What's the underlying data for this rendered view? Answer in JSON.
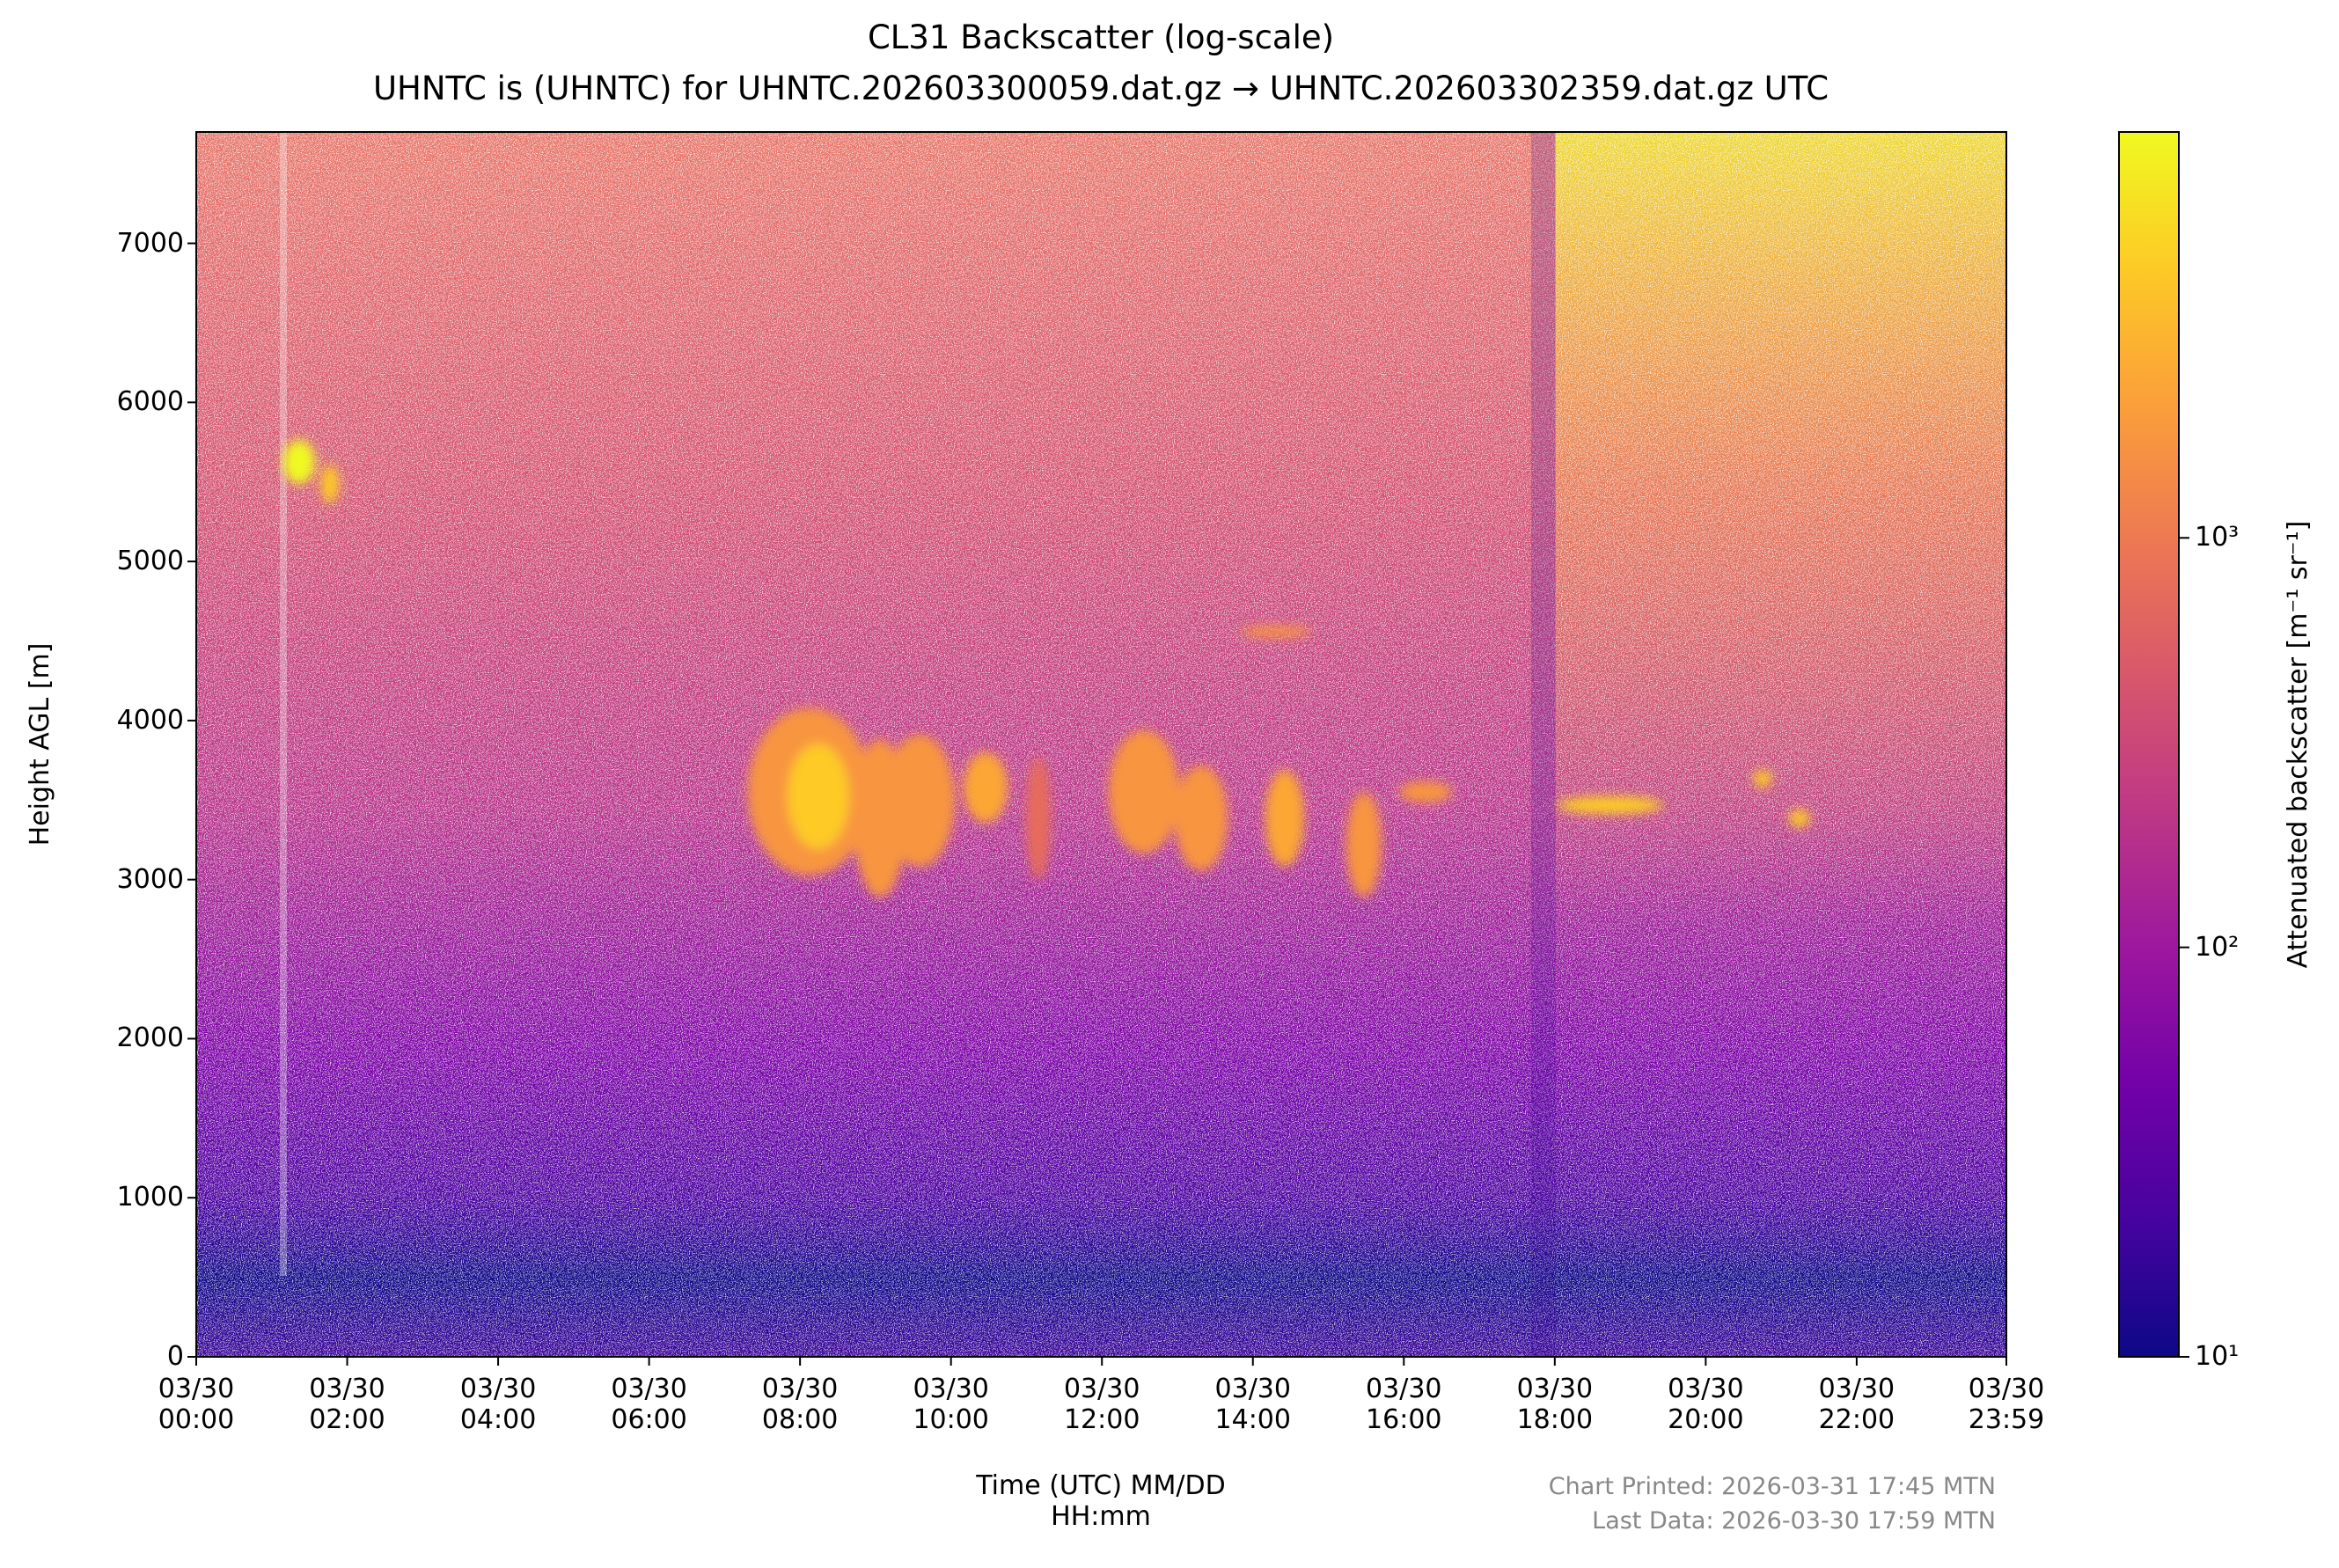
{
  "chart_data": {
    "type": "heatmap",
    "title": "CL31 Backscatter (log-scale)",
    "subtitle": "UHNTC is (UHNTC) for UHNTC.202603300059.dat.gz → UHNTC.202603302359.dat.gz UTC",
    "xlabel": "Time (UTC) MM/DD\nHH:mm",
    "ylabel": "Height AGL [m]",
    "xlim": [
      0,
      1439
    ],
    "xticks": [
      {
        "value": 0,
        "label": "03/30\n00:00"
      },
      {
        "value": 120,
        "label": "03/30\n02:00"
      },
      {
        "value": 240,
        "label": "03/30\n04:00"
      },
      {
        "value": 360,
        "label": "03/30\n06:00"
      },
      {
        "value": 480,
        "label": "03/30\n08:00"
      },
      {
        "value": 600,
        "label": "03/30\n10:00"
      },
      {
        "value": 720,
        "label": "03/30\n12:00"
      },
      {
        "value": 840,
        "label": "03/30\n14:00"
      },
      {
        "value": 960,
        "label": "03/30\n16:00"
      },
      {
        "value": 1080,
        "label": "03/30\n18:00"
      },
      {
        "value": 1200,
        "label": "03/30\n20:00"
      },
      {
        "value": 1320,
        "label": "03/30\n22:00"
      },
      {
        "value": 1439,
        "label": "03/30\n23:59"
      }
    ],
    "ylim": [
      0,
      7700
    ],
    "yticks": [
      0,
      1000,
      2000,
      3000,
      4000,
      5000,
      6000,
      7000
    ],
    "colorbar": {
      "label": "Attenuated backscatter [m⁻¹ sr⁻¹]",
      "scale": "log",
      "colormap": "plasma",
      "clim": [
        10,
        9800
      ],
      "ticks": [
        {
          "value": 10,
          "label": "10¹"
        },
        {
          "value": 100,
          "label": "10²"
        },
        {
          "value": 1000,
          "label": "10³"
        }
      ]
    },
    "annotations": [
      "Chart Printed: 2026-03-31 17:45 MTN",
      "Last Data: 2026-03-30 17:59 MTN"
    ]
  }
}
